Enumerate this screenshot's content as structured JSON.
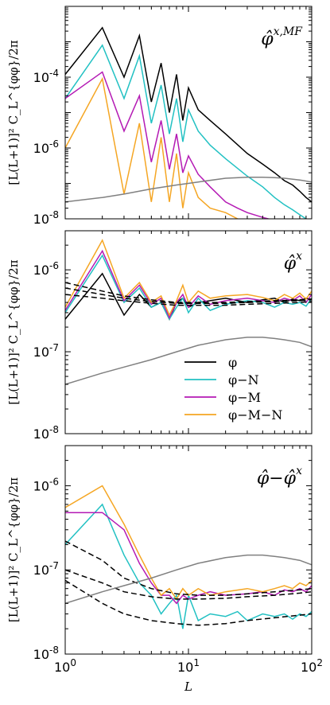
{
  "chart_data": [
    {
      "type": "line",
      "panel_label": "φ̂",
      "panel_label_sup": "x,MF",
      "ylabel": "[L(L+1)]² C_L^{φφ}/2π",
      "xlabel": "",
      "xscale": "log",
      "yscale": "log",
      "xlim": [
        1,
        100
      ],
      "ylim": [
        1e-08,
        0.01
      ],
      "yticks": [
        {
          "v": 1e-08,
          "label": "10-8"
        },
        {
          "v": 1e-06,
          "label": "10-6"
        },
        {
          "v": 0.0001,
          "label": "10-4"
        }
      ],
      "series": [
        {
          "color": "#000000",
          "dashed": false,
          "x": [
            1,
            2,
            3,
            4,
            5,
            6,
            7,
            8,
            9,
            10,
            12,
            15,
            20,
            30,
            40,
            50,
            60,
            70,
            80,
            90,
            100
          ],
          "y": [
            0.00012,
            0.0025,
            0.0001,
            0.0015,
            2e-05,
            0.00025,
            1e-05,
            0.00012,
            6e-06,
            5e-05,
            1.2e-05,
            6e-06,
            2.5e-06,
            7e-07,
            3.5e-07,
            2e-07,
            1.2e-07,
            9e-08,
            6e-08,
            4e-08,
            3e-08
          ]
        },
        {
          "color": "#22c1c3",
          "dashed": false,
          "x": [
            1,
            2,
            3,
            4,
            5,
            6,
            7,
            8,
            9,
            10,
            12,
            15,
            20,
            30,
            40,
            50,
            60,
            70,
            80,
            90,
            100
          ],
          "y": [
            2.5e-05,
            0.0008,
            2.5e-05,
            0.0004,
            5e-06,
            6e-05,
            2.5e-06,
            2.5e-05,
            1.5e-06,
            1.2e-05,
            3e-06,
            1.2e-06,
            5e-07,
            1.6e-07,
            8e-08,
            4e-08,
            2.5e-08,
            1.8e-08,
            1.3e-08,
            1e-08,
            9e-09
          ]
        },
        {
          "color": "#b41ab4",
          "dashed": false,
          "x": [
            1,
            2,
            3,
            4,
            5,
            6,
            7,
            8,
            9,
            10,
            12,
            15,
            20,
            25,
            30,
            40,
            50,
            60
          ],
          "y": [
            2.5e-05,
            0.00014,
            3e-06,
            3e-05,
            4e-07,
            6e-06,
            2.5e-07,
            2.5e-06,
            2e-07,
            6e-07,
            1.8e-07,
            8e-08,
            3e-08,
            2e-08,
            1.5e-08,
            1.1e-08,
            9e-09,
            7e-09
          ]
        },
        {
          "color": "#f5a623",
          "dashed": false,
          "x": [
            1,
            2,
            3,
            4,
            5,
            6,
            7,
            8,
            9,
            10,
            12,
            15,
            20,
            25,
            30
          ],
          "y": [
            1e-06,
            9e-05,
            5e-08,
            5e-06,
            3e-08,
            2e-06,
            3e-08,
            7e-07,
            2e-08,
            2e-07,
            4e-08,
            2e-08,
            1.5e-08,
            1e-08,
            8e-09
          ]
        },
        {
          "color": "#808080",
          "dashed": false,
          "x": [
            1,
            2,
            3,
            5,
            8,
            12,
            20,
            30,
            40,
            50,
            60,
            80,
            100
          ],
          "y": [
            3e-08,
            4e-08,
            5e-08,
            7e-08,
            9e-08,
            1.1e-07,
            1.4e-07,
            1.5e-07,
            1.5e-07,
            1.45e-07,
            1.4e-07,
            1.25e-07,
            1.1e-07
          ]
        }
      ]
    },
    {
      "type": "line",
      "panel_label": "φ̂",
      "panel_label_sup": "x",
      "ylabel": "[L(L+1)]² C_L^{φφ}/2π",
      "xlabel": "",
      "xscale": "log",
      "yscale": "log",
      "xlim": [
        1,
        100
      ],
      "ylim": [
        1e-08,
        3e-06
      ],
      "yticks": [
        {
          "v": 1e-08,
          "label": "10-8"
        },
        {
          "v": 1e-07,
          "label": "10-7"
        },
        {
          "v": 1e-06,
          "label": "10-6"
        }
      ],
      "legend": {
        "loc": "lower-right",
        "entries": [
          {
            "label": "φ",
            "color": "#000000"
          },
          {
            "label": "φ−N",
            "color": "#22c1c3"
          },
          {
            "label": "φ−M",
            "color": "#b41ab4"
          },
          {
            "label": "φ−M−N",
            "color": "#f5a623"
          }
        ]
      },
      "series": [
        {
          "color": "#000000",
          "dashed": false,
          "x": [
            1,
            2,
            3,
            4,
            5,
            6,
            7,
            8,
            9,
            10,
            12,
            15,
            20,
            30,
            40,
            50,
            60,
            70,
            80,
            90,
            100
          ],
          "y": [
            2.5e-07,
            9e-07,
            2.8e-07,
            5e-07,
            3.5e-07,
            4e-07,
            2.5e-07,
            4e-07,
            4.5e-07,
            3.5e-07,
            4e-07,
            4.2e-07,
            4.5e-07,
            4e-07,
            4.3e-07,
            4.5e-07,
            4e-07,
            4.4e-07,
            4.2e-07,
            4.5e-07,
            4.3e-07
          ]
        },
        {
          "color": "#22c1c3",
          "dashed": false,
          "x": [
            1,
            2,
            3,
            4,
            5,
            6,
            7,
            8,
            9,
            10,
            12,
            15,
            20,
            30,
            40,
            50,
            60,
            70,
            80,
            90,
            100
          ],
          "y": [
            3e-07,
            1.5e-06,
            4e-07,
            6e-07,
            3.5e-07,
            4e-07,
            2.5e-07,
            3.5e-07,
            4.5e-07,
            3e-07,
            4.5e-07,
            3.2e-07,
            3.8e-07,
            4.2e-07,
            4e-07,
            3.5e-07,
            4e-07,
            3.8e-07,
            4e-07,
            3.6e-07,
            4.5e-07
          ]
        },
        {
          "color": "#b41ab4",
          "dashed": false,
          "x": [
            1,
            2,
            3,
            4,
            5,
            6,
            7,
            8,
            9,
            10,
            12,
            15,
            20,
            30,
            40,
            50,
            60,
            70,
            80,
            90,
            100
          ],
          "y": [
            3.2e-07,
            1.7e-06,
            4.2e-07,
            6.5e-07,
            3.8e-07,
            4.5e-07,
            2.6e-07,
            4e-07,
            5e-07,
            3.5e-07,
            4.8e-07,
            3.8e-07,
            4.2e-07,
            4.5e-07,
            4.2e-07,
            4e-07,
            4.5e-07,
            4.2e-07,
            4.8e-07,
            4e-07,
            5e-07
          ]
        },
        {
          "color": "#f5a623",
          "dashed": false,
          "x": [
            1,
            2,
            3,
            4,
            5,
            6,
            7,
            8,
            9,
            10,
            12,
            15,
            20,
            30,
            40,
            50,
            60,
            70,
            80,
            90,
            100
          ],
          "y": [
            3.5e-07,
            2.3e-06,
            4.5e-07,
            7e-07,
            4e-07,
            4.8e-07,
            2.8e-07,
            4.2e-07,
            6.5e-07,
            4e-07,
            5.5e-07,
            4.5e-07,
            4.8e-07,
            5e-07,
            4.6e-07,
            4.2e-07,
            5e-07,
            4.5e-07,
            5.2e-07,
            4.4e-07,
            5.5e-07
          ]
        },
        {
          "color": "#000000",
          "dashed": true,
          "x": [
            1,
            2,
            3,
            5,
            8,
            12,
            20,
            30,
            50,
            80,
            100
          ],
          "y": [
            7e-07,
            5.5e-07,
            4.8e-07,
            4.3e-07,
            4e-07,
            4e-07,
            4e-07,
            4.1e-07,
            4.2e-07,
            4.3e-07,
            4.4e-07
          ]
        },
        {
          "color": "#000000",
          "dashed": true,
          "x": [
            1,
            2,
            3,
            5,
            8,
            12,
            20,
            30,
            50,
            80,
            100
          ],
          "y": [
            6e-07,
            5e-07,
            4.5e-07,
            4.1e-07,
            3.9e-07,
            3.9e-07,
            3.9e-07,
            4e-07,
            4.1e-07,
            4.2e-07,
            4.3e-07
          ]
        },
        {
          "color": "#000000",
          "dashed": true,
          "x": [
            1,
            2,
            3,
            5,
            8,
            12,
            20,
            30,
            50,
            80,
            100
          ],
          "y": [
            5e-07,
            4.5e-07,
            4.2e-07,
            3.9e-07,
            3.7e-07,
            3.7e-07,
            3.7e-07,
            3.8e-07,
            3.9e-07,
            4e-07,
            4.1e-07
          ]
        },
        {
          "color": "#808080",
          "dashed": false,
          "x": [
            1,
            2,
            3,
            5,
            8,
            12,
            20,
            30,
            40,
            50,
            60,
            80,
            100
          ],
          "y": [
            4e-08,
            5.5e-08,
            6.5e-08,
            8e-08,
            1e-07,
            1.2e-07,
            1.4e-07,
            1.5e-07,
            1.5e-07,
            1.45e-07,
            1.4e-07,
            1.3e-07,
            1.15e-07
          ]
        }
      ]
    },
    {
      "type": "line",
      "panel_label": "φ̂−φ̂",
      "panel_label_sup": "x",
      "ylabel": "[L(L+1)]² C_L^{φφ}/2π",
      "xlabel": "L",
      "xscale": "log",
      "yscale": "log",
      "xlim": [
        1,
        100
      ],
      "ylim": [
        1e-08,
        3e-06
      ],
      "xticks": [
        {
          "v": 1,
          "label": "10^0"
        },
        {
          "v": 10,
          "label": "10^1"
        },
        {
          "v": 100,
          "label": "10^2"
        }
      ],
      "yticks": [
        {
          "v": 1e-08,
          "label": "10-8"
        },
        {
          "v": 1e-07,
          "label": "10-7"
        },
        {
          "v": 1e-06,
          "label": "10-6"
        }
      ],
      "series": [
        {
          "color": "#22c1c3",
          "dashed": false,
          "x": [
            1,
            2,
            3,
            4,
            5,
            6,
            7,
            8,
            9,
            10,
            12,
            15,
            20,
            25,
            30,
            40,
            50,
            60,
            70,
            80,
            90,
            100
          ],
          "y": [
            2e-07,
            6e-07,
            1.5e-07,
            7e-08,
            5e-08,
            3e-08,
            4e-08,
            5e-08,
            2e-08,
            5e-08,
            2.5e-08,
            3e-08,
            2.8e-08,
            3.2e-08,
            2.5e-08,
            3e-08,
            2.8e-08,
            3e-08,
            2.6e-08,
            3e-08,
            2.8e-08,
            3.2e-08
          ]
        },
        {
          "color": "#b41ab4",
          "dashed": false,
          "x": [
            1,
            2,
            3,
            4,
            5,
            6,
            7,
            8,
            9,
            10,
            12,
            15,
            20,
            30,
            40,
            50,
            60,
            70,
            80,
            90,
            100
          ],
          "y": [
            4.8e-07,
            4.8e-07,
            3e-07,
            1.2e-07,
            7e-08,
            5e-08,
            5e-08,
            4e-08,
            5e-08,
            4.5e-08,
            5e-08,
            5.5e-08,
            5e-08,
            5.2e-08,
            5.5e-08,
            5e-08,
            5.8e-08,
            5.5e-08,
            6e-08,
            5.5e-08,
            6.5e-08
          ]
        },
        {
          "color": "#f5a623",
          "dashed": false,
          "x": [
            1,
            2,
            3,
            4,
            5,
            6,
            7,
            8,
            9,
            10,
            12,
            15,
            20,
            30,
            40,
            50,
            60,
            70,
            80,
            90,
            100
          ],
          "y": [
            5.5e-07,
            1e-06,
            3.5e-07,
            1.5e-07,
            8e-08,
            5e-08,
            6e-08,
            4.5e-08,
            6e-08,
            5e-08,
            6e-08,
            5e-08,
            5.5e-08,
            6e-08,
            5.5e-08,
            6e-08,
            6.5e-08,
            6e-08,
            7e-08,
            6.5e-08,
            7.5e-08
          ]
        },
        {
          "color": "#000000",
          "dashed": true,
          "x": [
            1,
            2,
            3,
            5,
            8,
            12,
            20,
            30,
            50,
            80,
            100
          ],
          "y": [
            2.2e-07,
            1.3e-07,
            8e-08,
            6e-08,
            5.2e-08,
            5e-08,
            5e-08,
            5.2e-08,
            5.5e-08,
            5.8e-08,
            6e-08
          ]
        },
        {
          "color": "#000000",
          "dashed": true,
          "x": [
            1,
            2,
            3,
            5,
            8,
            12,
            20,
            30,
            50,
            80,
            100
          ],
          "y": [
            1e-07,
            7e-08,
            5.5e-08,
            4.8e-08,
            4.5e-08,
            4.5e-08,
            4.6e-08,
            4.8e-08,
            5e-08,
            5.3e-08,
            5.5e-08
          ]
        },
        {
          "color": "#000000",
          "dashed": true,
          "x": [
            1,
            2,
            3,
            5,
            8,
            12,
            20,
            30,
            50,
            80,
            100
          ],
          "y": [
            7.5e-08,
            4e-08,
            3e-08,
            2.5e-08,
            2.3e-08,
            2.2e-08,
            2.3e-08,
            2.5e-08,
            2.7e-08,
            2.9e-08,
            3e-08
          ]
        },
        {
          "color": "#808080",
          "dashed": false,
          "x": [
            1,
            2,
            3,
            5,
            8,
            12,
            20,
            30,
            40,
            50,
            60,
            80,
            100
          ],
          "y": [
            4e-08,
            5.5e-08,
            6.5e-08,
            8e-08,
            1e-07,
            1.2e-07,
            1.4e-07,
            1.5e-07,
            1.5e-07,
            1.45e-07,
            1.4e-07,
            1.3e-07,
            1.15e-07
          ]
        }
      ]
    }
  ]
}
